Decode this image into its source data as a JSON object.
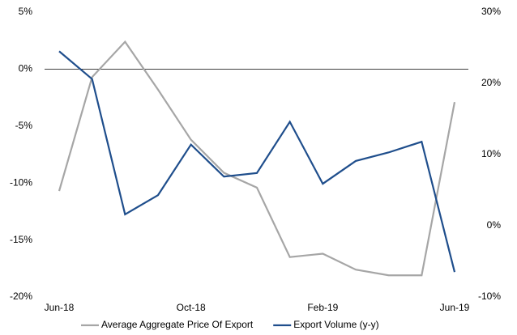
{
  "chart_data": {
    "type": "line",
    "categories": [
      "Jun-18",
      null,
      null,
      null,
      "Oct-18",
      null,
      null,
      null,
      "Feb-19",
      null,
      null,
      null,
      "Jun-19"
    ],
    "series": [
      {
        "name": "Average Aggregate Price Of Export",
        "color": "#a6a6a6",
        "axis": "y",
        "values": [
          -10.7,
          -0.7,
          2.4,
          -1.8,
          -6.2,
          -9.1,
          -10.4,
          -16.5,
          -16.2,
          -17.6,
          -18.1,
          -18.1,
          -2.9
        ]
      },
      {
        "name": "Export Volume (y-y)",
        "color": "#1f4e8c",
        "axis": "y2",
        "values": [
          24.5,
          20.6,
          1.6,
          4.3,
          11.4,
          6.9,
          7.4,
          14.6,
          5.9,
          9.1,
          10.3,
          11.8,
          -6.5
        ]
      }
    ],
    "ylim": [
      -20,
      5
    ],
    "yticks": [
      {
        "value": 5,
        "label": "5%"
      },
      {
        "value": 0,
        "label": "0%"
      },
      {
        "value": -5,
        "label": "-5%"
      },
      {
        "value": -10,
        "label": "-10%"
      },
      {
        "value": -15,
        "label": "-15%"
      },
      {
        "value": -20,
        "label": "-20%"
      }
    ],
    "y2lim": [
      -10,
      30
    ],
    "y2ticks": [
      {
        "value": 30,
        "label": "30%"
      },
      {
        "value": 20,
        "label": "20%"
      },
      {
        "value": 10,
        "label": "10%"
      },
      {
        "value": 0,
        "label": "0%"
      },
      {
        "value": -10,
        "label": "-10%"
      }
    ],
    "grid": false,
    "legend": "bottom"
  }
}
